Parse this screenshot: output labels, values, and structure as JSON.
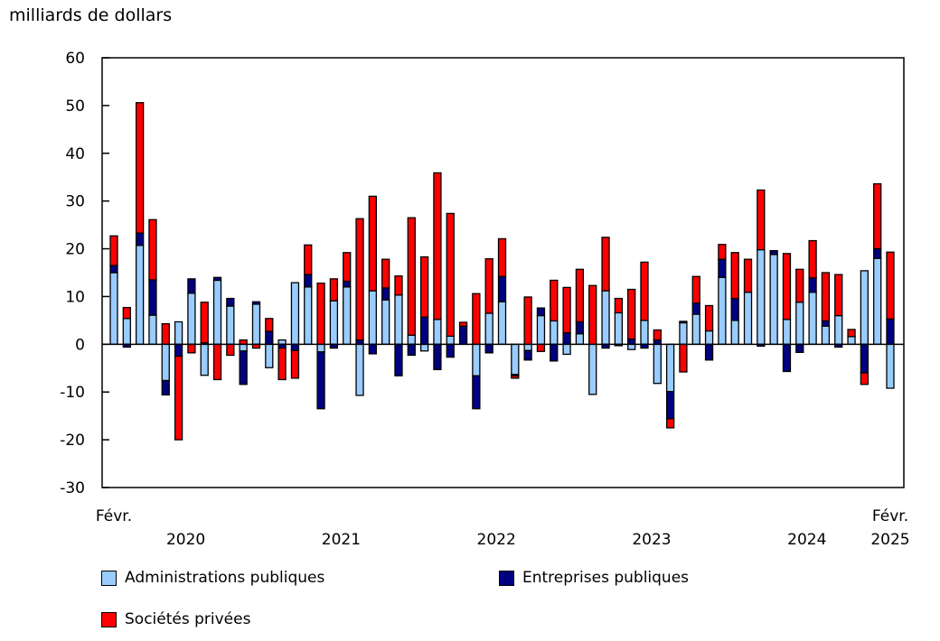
{
  "chart_data": {
    "type": "bar",
    "stacked": true,
    "title": "",
    "ylabel": "milliards de dollars",
    "xlabel": "",
    "ylim": [
      -30,
      60
    ],
    "yticks": [
      -30,
      -20,
      -10,
      0,
      10,
      20,
      30,
      40,
      50,
      60
    ],
    "x_start": "Févr. 2020",
    "x_end": "Févr. 2025",
    "x_tick_labels": [
      {
        "label": "Févr.",
        "bar": 0
      },
      {
        "label": "2020",
        "bar": 5
      },
      {
        "label": "2021",
        "bar": 17
      },
      {
        "label": "2022",
        "bar": 29
      },
      {
        "label": "2023",
        "bar": 41
      },
      {
        "label": "2024",
        "bar": 53
      },
      {
        "label": "Févr.",
        "bar": 60
      },
      {
        "label": "2025",
        "bar": 60
      }
    ],
    "grid": false,
    "legend_position": "bottom",
    "series": [
      {
        "name": "Administrations publiques",
        "color": "#99ccff",
        "values": [
          15.0,
          5.4,
          20.7,
          6.1,
          -7.6,
          4.7,
          10.7,
          -6.5,
          13.4,
          8.0,
          -1.4,
          8.4,
          -4.9,
          0.9,
          12.9,
          12.0,
          -1.6,
          9.1,
          12.0,
          -10.7,
          11.2,
          9.3,
          10.3,
          1.9,
          -1.4,
          5.2,
          1.7,
          0,
          -6.6,
          6.5,
          8.9,
          -6.3,
          -1.3,
          6.0,
          4.9,
          -2.1,
          2.2,
          -10.5,
          11.2,
          6.6,
          -1.1,
          5.0,
          -8.2,
          -9.9,
          4.5,
          6.3,
          2.8,
          14.0,
          5.0,
          10.9,
          19.8,
          18.8,
          5.2,
          8.8,
          10.9,
          3.8,
          6.0,
          1.6,
          15.4,
          18.0,
          -9.2
        ]
      },
      {
        "name": "Entreprises publiques",
        "color": "#000080",
        "values": [
          1.5,
          -0.6,
          2.6,
          7.4,
          -3.0,
          -2.5,
          3.0,
          0.3,
          0.6,
          1.6,
          -7.0,
          0.5,
          2.7,
          -0.8,
          -1.3,
          2.6,
          -11.9,
          -0.8,
          1.2,
          0.9,
          -2.0,
          2.5,
          -6.6,
          -2.3,
          5.7,
          -5.3,
          -2.7,
          3.8,
          -6.9,
          -1.8,
          5.3,
          -0.3,
          -2.0,
          1.6,
          -3.5,
          2.4,
          2.5,
          0,
          -0.8,
          -0.3,
          1.1,
          -0.8,
          0.9,
          -5.7,
          0.3,
          2.3,
          -3.3,
          3.8,
          4.6,
          0,
          -0.4,
          0.8,
          -5.7,
          -1.7,
          3.0,
          1.1,
          -0.6,
          0,
          -6.0,
          2.0,
          5.3
        ]
      },
      {
        "name": "Sociétés privées",
        "color": "#ff0000",
        "values": [
          6.2,
          2.3,
          27.3,
          12.6,
          4.3,
          -17.5,
          -1.8,
          8.5,
          -7.4,
          -2.3,
          0.9,
          -0.8,
          2.7,
          -6.6,
          -5.8,
          6.2,
          12.8,
          4.6,
          6.0,
          25.4,
          19.8,
          6.0,
          4.0,
          24.6,
          12.6,
          30.7,
          25.7,
          0.8,
          10.6,
          11.4,
          7.9,
          -0.5,
          9.9,
          -1.5,
          8.5,
          9.5,
          11.0,
          12.3,
          11.2,
          3.0,
          10.4,
          12.2,
          2.1,
          -1.9,
          -5.8,
          5.6,
          5.3,
          3.1,
          9.6,
          6.9,
          12.5,
          0,
          13.8,
          6.9,
          7.8,
          10.1,
          8.6,
          1.5,
          -2.4,
          13.6,
          14.0
        ]
      }
    ]
  }
}
